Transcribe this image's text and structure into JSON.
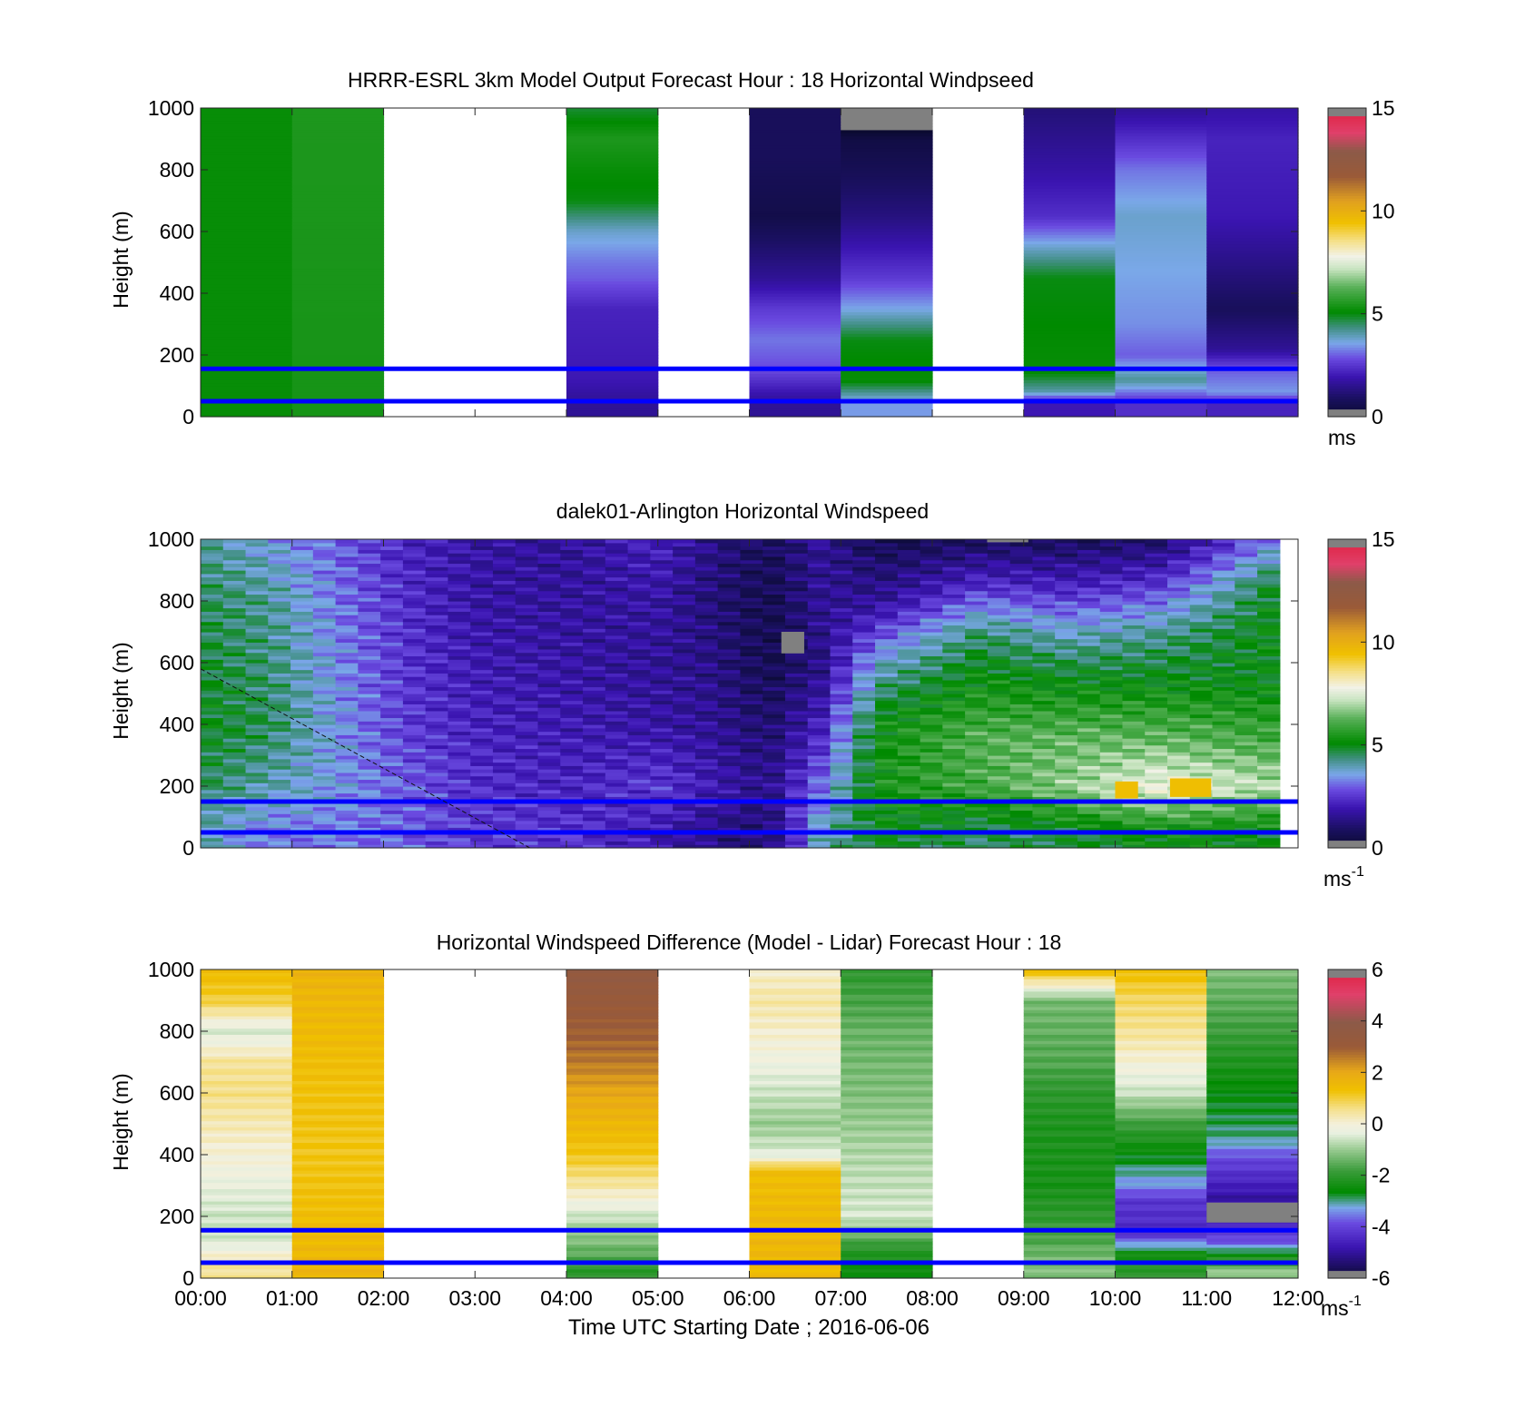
{
  "figure": {
    "xlabel": "Time UTC  Starting Date ; 2016-06-06",
    "xticks": [
      "00:00",
      "01:00",
      "02:00",
      "03:00",
      "04:00",
      "05:00",
      "06:00",
      "07:00",
      "08:00",
      "09:00",
      "10:00",
      "11:00",
      "12:00"
    ]
  },
  "chart_data": [
    {
      "type": "heatmap",
      "title": "HRRR-ESRL 3km Model Output   Forecast Hour : 18 Horizontal Windpseed",
      "ylabel": "Height (m)",
      "ylim": [
        0,
        1000
      ],
      "yticks": [
        "0",
        "200",
        "400",
        "600",
        "800",
        "1000"
      ],
      "xlim_hours": [
        0,
        12
      ],
      "colorbar": {
        "label": "ms",
        "min": 0,
        "max": 15,
        "ticks": [
          "0",
          "5",
          "10",
          "15"
        ]
      },
      "reference_lines_m": [
        155,
        50
      ],
      "columns_hours_start": [
        0,
        1,
        2,
        3,
        4,
        5,
        6,
        7,
        8,
        9,
        10,
        11
      ],
      "missing_columns": [
        2,
        3,
        5,
        8
      ],
      "profiles_ms": [
        [
          [
            1000,
            5.2
          ],
          [
            0,
            5.2
          ]
        ],
        [
          [
            1000,
            5.5
          ],
          [
            0,
            5.4
          ]
        ],
        [],
        [],
        [
          [
            1000,
            4.8
          ],
          [
            900,
            5.5
          ],
          [
            800,
            5.2
          ],
          [
            700,
            5.0
          ],
          [
            600,
            3.8
          ],
          [
            500,
            3.2
          ],
          [
            450,
            3.0
          ],
          [
            350,
            2.2
          ],
          [
            120,
            2.0
          ],
          [
            50,
            1.6
          ]
        ],
        [],
        [
          [
            1000,
            0.8
          ],
          [
            850,
            0.8
          ],
          [
            650,
            0.5
          ],
          [
            450,
            1.6
          ],
          [
            350,
            2.6
          ],
          [
            250,
            3.2
          ],
          [
            150,
            2.8
          ],
          [
            50,
            1.6
          ]
        ],
        [
          [
            1000,
            -1
          ],
          [
            900,
            0.4
          ],
          [
            800,
            0.7
          ],
          [
            650,
            1.3
          ],
          [
            450,
            2.6
          ],
          [
            350,
            3.6
          ],
          [
            250,
            5.0
          ],
          [
            120,
            5.2
          ],
          [
            50,
            3.5
          ]
        ],
        [],
        [
          [
            1000,
            1.2
          ],
          [
            800,
            1.8
          ],
          [
            650,
            2.4
          ],
          [
            550,
            3.8
          ],
          [
            450,
            5.0
          ],
          [
            150,
            5.2
          ],
          [
            80,
            4.0
          ],
          [
            50,
            2.0
          ]
        ],
        [
          [
            1000,
            1.6
          ],
          [
            900,
            2.4
          ],
          [
            800,
            3.2
          ],
          [
            650,
            3.8
          ],
          [
            300,
            3.4
          ],
          [
            200,
            3.0
          ],
          [
            120,
            4.2
          ],
          [
            50,
            2.4
          ]
        ],
        [
          [
            1000,
            1.8
          ],
          [
            900,
            2.2
          ],
          [
            650,
            2.0
          ],
          [
            450,
            1.2
          ],
          [
            350,
            0.8
          ],
          [
            220,
            1.6
          ],
          [
            150,
            3.0
          ],
          [
            80,
            3.5
          ],
          [
            50,
            2.2
          ]
        ]
      ]
    },
    {
      "type": "heatmap",
      "title": "dalek01-Arlington  Horizontal Windspeed",
      "ylabel": "Height (m)",
      "ylim": [
        0,
        1000
      ],
      "yticks": [
        "0",
        "200",
        "400",
        "600",
        "800",
        "1000"
      ],
      "xlim_hours": [
        0,
        12
      ],
      "colorbar": {
        "label": "ms",
        "label_sup": "-1",
        "min": 0,
        "max": 15,
        "ticks": [
          "0",
          "5",
          "10",
          "15"
        ]
      },
      "reference_lines_m": [
        150,
        50
      ],
      "data_end_hours": 11.8,
      "keyframes_ms": [
        {
          "t": 0.0,
          "profile": [
            [
              1000,
              4.2
            ],
            [
              800,
              4.6
            ],
            [
              600,
              4.8
            ],
            [
              400,
              5.0
            ],
            [
              200,
              4.6
            ],
            [
              50,
              4.0
            ]
          ]
        },
        {
          "t": 0.75,
          "profile": [
            [
              1000,
              3.6
            ],
            [
              800,
              4.2
            ],
            [
              600,
              4.4
            ],
            [
              400,
              4.6
            ],
            [
              200,
              4.0
            ],
            [
              50,
              3.2
            ]
          ]
        },
        {
          "t": 1.5,
          "profile": [
            [
              1000,
              3.0
            ],
            [
              800,
              3.2
            ],
            [
              600,
              3.4
            ],
            [
              400,
              3.5
            ],
            [
              200,
              3.5
            ],
            [
              50,
              3.2
            ]
          ]
        },
        {
          "t": 2.25,
          "profile": [
            [
              1000,
              2.2
            ],
            [
              800,
              2.4
            ],
            [
              600,
              2.5
            ],
            [
              400,
              2.6
            ],
            [
              200,
              3.0
            ],
            [
              50,
              3.0
            ]
          ]
        },
        {
          "t": 3.0,
          "profile": [
            [
              1000,
              1.8
            ],
            [
              800,
              1.8
            ],
            [
              600,
              2.0
            ],
            [
              400,
              2.2
            ],
            [
              200,
              2.4
            ],
            [
              50,
              2.6
            ]
          ]
        },
        {
          "t": 4.0,
          "profile": [
            [
              1000,
              1.6
            ],
            [
              800,
              1.7
            ],
            [
              600,
              1.8
            ],
            [
              400,
              2.0
            ],
            [
              200,
              2.2
            ],
            [
              50,
              2.5
            ]
          ]
        },
        {
          "t": 5.0,
          "profile": [
            [
              1000,
              2.2
            ],
            [
              800,
              1.8
            ],
            [
              600,
              1.6
            ],
            [
              400,
              1.8
            ],
            [
              200,
              2.6
            ],
            [
              50,
              2.0
            ]
          ]
        },
        {
          "t": 5.6,
          "profile": [
            [
              1000,
              1.4
            ],
            [
              800,
              1.2
            ],
            [
              600,
              1.4
            ],
            [
              400,
              1.6
            ],
            [
              200,
              2.0
            ],
            [
              50,
              1.4
            ]
          ]
        },
        {
          "t": 6.2,
          "profile": [
            [
              1000,
              0.8
            ],
            [
              800,
              0.6
            ],
            [
              600,
              0.6
            ],
            [
              400,
              1.0
            ],
            [
              200,
              1.4
            ],
            [
              50,
              1.0
            ]
          ]
        },
        {
          "t": 6.8,
          "profile": [
            [
              1000,
              1.6
            ],
            [
              800,
              1.6
            ],
            [
              600,
              1.4
            ],
            [
              400,
              2.2
            ],
            [
              200,
              3.2
            ],
            [
              50,
              4.0
            ]
          ]
        },
        {
          "t": 7.4,
          "profile": [
            [
              1000,
              0.6
            ],
            [
              800,
              1.6
            ],
            [
              600,
              3.8
            ],
            [
              400,
              5.2
            ],
            [
              200,
              5.4
            ],
            [
              50,
              5.0
            ]
          ]
        },
        {
          "t": 8.5,
          "profile": [
            [
              1000,
              0.8
            ],
            [
              850,
              2.4
            ],
            [
              700,
              4.4
            ],
            [
              550,
              5.2
            ],
            [
              350,
              6.2
            ],
            [
              200,
              6.0
            ],
            [
              50,
              4.5
            ]
          ]
        },
        {
          "t": 9.5,
          "profile": [
            [
              1000,
              0.8
            ],
            [
              850,
              2.2
            ],
            [
              700,
              3.8
            ],
            [
              550,
              5.0
            ],
            [
              350,
              6.4
            ],
            [
              200,
              6.8
            ],
            [
              50,
              4.8
            ]
          ]
        },
        {
          "t": 10.5,
          "profile": [
            [
              1000,
              1.0
            ],
            [
              850,
              2.6
            ],
            [
              700,
              4.2
            ],
            [
              550,
              5.0
            ],
            [
              350,
              6.4
            ],
            [
              200,
              7.8
            ],
            [
              50,
              5.2
            ]
          ]
        },
        {
          "t": 11.8,
          "profile": [
            [
              1000,
              3.4
            ],
            [
              850,
              5.0
            ],
            [
              700,
              5.2
            ],
            [
              550,
              5.0
            ],
            [
              350,
              6.0
            ],
            [
              200,
              7.0
            ],
            [
              50,
              5.0
            ]
          ]
        }
      ],
      "patches_ms": [
        {
          "x0": 6.35,
          "x1": 6.6,
          "y0": 630,
          "y1": 700,
          "v": -1
        },
        {
          "x0": 8.6,
          "x1": 9.05,
          "y0": 990,
          "y1": 1000,
          "v": -1
        },
        {
          "x0": 10.0,
          "x1": 10.25,
          "y0": 160,
          "y1": 215,
          "v": 9.5
        },
        {
          "x0": 10.6,
          "x1": 11.05,
          "y0": 165,
          "y1": 225,
          "v": 9.5
        }
      ],
      "dashed_line": {
        "from": [
          0.0,
          580
        ],
        "to": [
          3.6,
          0
        ]
      }
    },
    {
      "type": "heatmap",
      "title": "Horizontal Windspeed Difference (Model - Lidar) Forecast Hour : 18",
      "ylabel": "Height (m)",
      "ylim": [
        0,
        1000
      ],
      "yticks": [
        "0",
        "200",
        "400",
        "600",
        "800",
        "1000"
      ],
      "xlim_hours": [
        0,
        12
      ],
      "colorbar": {
        "label": "ms",
        "label_sup": "-1",
        "min": -6,
        "max": 6,
        "ticks": [
          "-6",
          "-4",
          "-2",
          "0",
          "2",
          "4",
          "6"
        ]
      },
      "reference_lines_m": [
        155,
        50
      ],
      "columns_hours_start": [
        0,
        1,
        2,
        3,
        4,
        5,
        6,
        7,
        8,
        9,
        10,
        11
      ],
      "missing_columns": [
        2,
        3,
        5,
        8
      ],
      "profiles_ms": [
        [
          [
            1000,
            1.5
          ],
          [
            900,
            1.0
          ],
          [
            800,
            -0.5
          ],
          [
            700,
            0.5
          ],
          [
            600,
            0.6
          ],
          [
            500,
            0.3
          ],
          [
            400,
            0.0
          ],
          [
            300,
            -0.3
          ],
          [
            200,
            -0.6
          ],
          [
            120,
            -0.5
          ],
          [
            40,
            0.5
          ]
        ],
        [
          [
            1000,
            1.7
          ],
          [
            800,
            1.5
          ],
          [
            600,
            1.3
          ],
          [
            400,
            1.2
          ],
          [
            200,
            1.4
          ],
          [
            50,
            1.6
          ]
        ],
        [],
        [],
        [
          [
            1000,
            3.6
          ],
          [
            900,
            3.2
          ],
          [
            800,
            3.0
          ],
          [
            700,
            2.6
          ],
          [
            600,
            2.0
          ],
          [
            500,
            1.6
          ],
          [
            400,
            1.2
          ],
          [
            300,
            0.4
          ],
          [
            200,
            -0.6
          ],
          [
            80,
            -1.5
          ],
          [
            30,
            -2.0
          ]
        ],
        [],
        [
          [
            1000,
            0.1
          ],
          [
            900,
            0.4
          ],
          [
            800,
            0.1
          ],
          [
            700,
            -0.2
          ],
          [
            500,
            -1.0
          ],
          [
            400,
            -0.4
          ],
          [
            350,
            1.4
          ],
          [
            100,
            1.6
          ],
          [
            50,
            1.5
          ]
        ],
        [
          [
            1000,
            -2.0
          ],
          [
            800,
            -1.4
          ],
          [
            600,
            -1.2
          ],
          [
            400,
            -0.8
          ],
          [
            200,
            -0.5
          ],
          [
            100,
            -2.0
          ],
          [
            30,
            -2.5
          ]
        ],
        [],
        [
          [
            1000,
            1.5
          ],
          [
            900,
            -1.3
          ],
          [
            700,
            -1.6
          ],
          [
            600,
            -2.0
          ],
          [
            500,
            -2.2
          ],
          [
            300,
            -2.3
          ],
          [
            150,
            -1.8
          ],
          [
            50,
            -1.2
          ]
        ],
        [
          [
            1000,
            1.4
          ],
          [
            900,
            0.8
          ],
          [
            800,
            0.5
          ],
          [
            700,
            0.0
          ],
          [
            600,
            -0.6
          ],
          [
            500,
            -1.8
          ],
          [
            400,
            -2.6
          ],
          [
            300,
            -3.4
          ],
          [
            250,
            -4.2
          ],
          [
            150,
            -4.4
          ],
          [
            80,
            -2.4
          ],
          [
            30,
            -2.0
          ]
        ],
        [
          [
            1000,
            -1.2
          ],
          [
            800,
            -1.8
          ],
          [
            600,
            -2.6
          ],
          [
            450,
            -3.0
          ],
          [
            400,
            -3.8
          ],
          [
            300,
            -4.6
          ],
          [
            250,
            -5.0
          ],
          [
            180,
            -4.6
          ],
          [
            120,
            -3.8
          ],
          [
            60,
            -2.0
          ],
          [
            20,
            -1.0
          ]
        ]
      ],
      "patches_ms": [
        {
          "col": 11,
          "y0": 180,
          "y1": 245,
          "v": -99
        }
      ]
    }
  ]
}
